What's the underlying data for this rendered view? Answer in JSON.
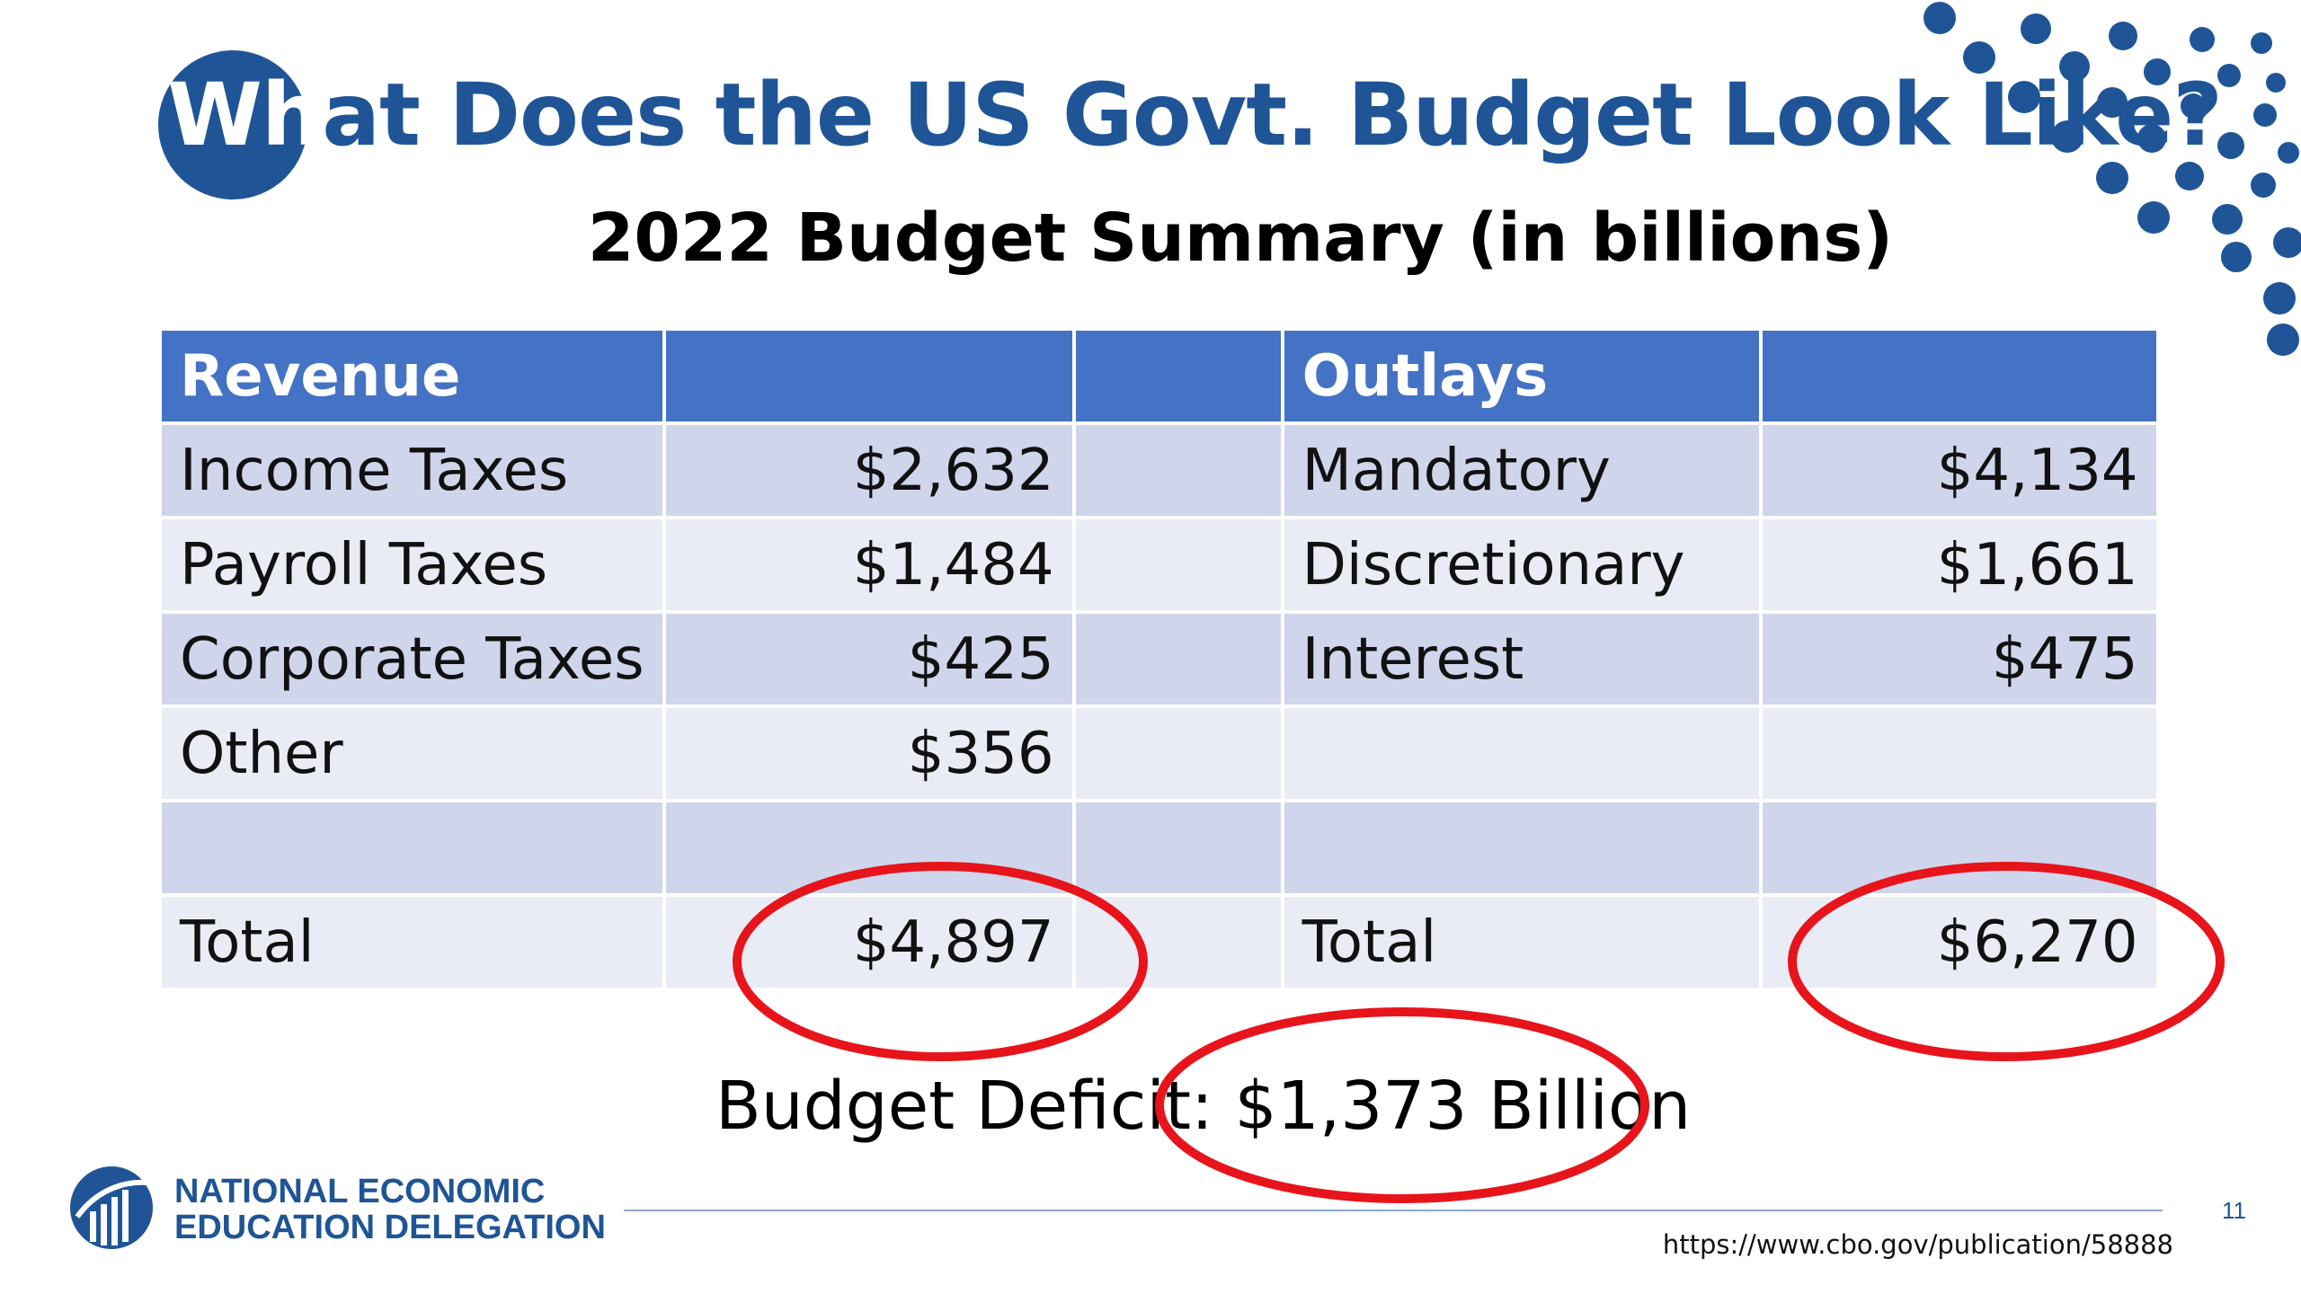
{
  "slide": {
    "title_highlight": "Wh",
    "title_rest": "at Does the US Govt. Budget Look Like?",
    "subtitle": "2022 Budget Summary (in billions)",
    "accent_color": "#1f5597",
    "header_color": "#4472c4",
    "highlight_color": "#e8141b"
  },
  "table": {
    "headers": [
      "Revenue",
      "",
      "",
      "Outlays",
      ""
    ],
    "rows": [
      [
        "Income Taxes",
        "$2,632",
        "",
        "Mandatory",
        "$4,134"
      ],
      [
        "Payroll Taxes",
        "$1,484",
        "",
        "Discretionary",
        "$1,661"
      ],
      [
        "Corporate Taxes",
        "$425",
        "",
        "Interest",
        "$475"
      ],
      [
        "Other",
        "$356",
        "",
        "",
        ""
      ],
      [
        "",
        "",
        "",
        "",
        ""
      ],
      [
        "Total",
        "$4,897",
        "",
        "Total",
        "$6,270"
      ]
    ]
  },
  "deficit": {
    "label": "Budget Deficit:",
    "value": "$1,373 Billion"
  },
  "footer": {
    "org_line1": "NATIONAL ECONOMIC",
    "org_line2": "EDUCATION DELEGATION",
    "page_number": "11",
    "source_url": "https://www.cbo.gov/publication/58888"
  },
  "icons": [
    "decorative-dot-pattern",
    "need-logo-icon"
  ]
}
